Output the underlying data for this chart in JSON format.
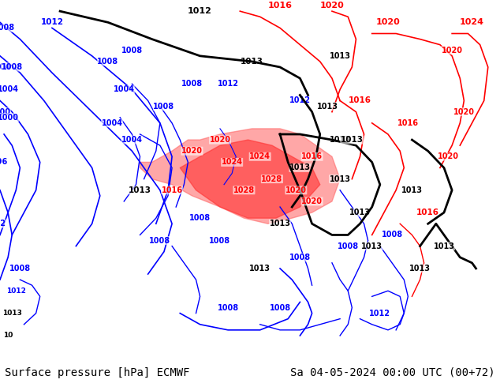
{
  "title_left": "Surface pressure [hPa] ECMWF",
  "title_right": "Sa 04-05-2024 00:00 UTC (00+72)",
  "title_fontsize": 10,
  "title_color": "#000000",
  "fig_width": 6.34,
  "fig_height": 4.9,
  "dpi": 100,
  "lon_min": 25,
  "lon_max": 150,
  "lat_min": -2,
  "lat_max": 62
}
